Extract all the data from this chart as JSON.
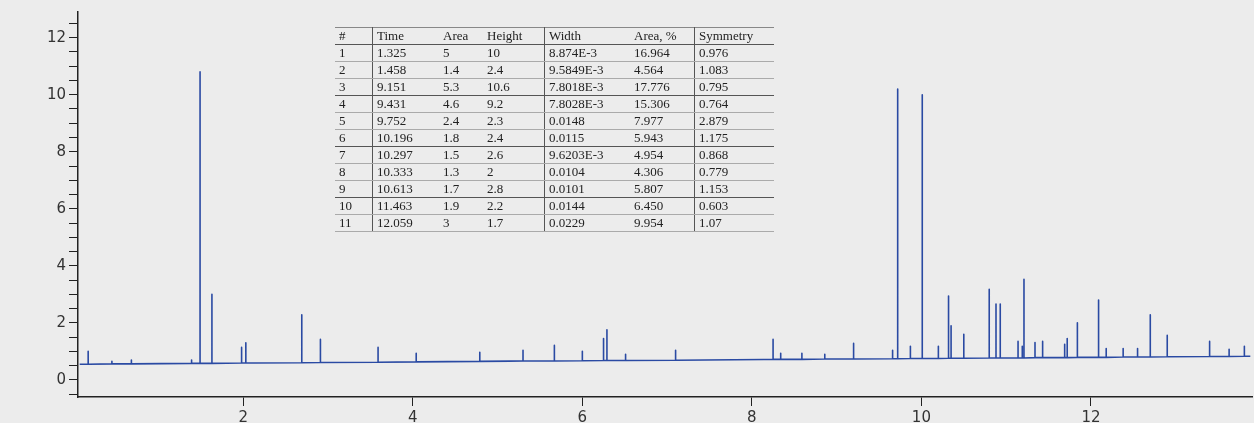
{
  "chart_data": {
    "type": "line",
    "x": [
      0.07,
      0.17,
      0.17,
      0.17,
      0.45,
      0.45,
      0.45,
      0.68,
      0.68,
      0.68,
      1.39,
      1.39,
      1.39,
      1.49,
      1.49,
      1.49,
      1.63,
      1.63,
      1.63,
      1.98,
      1.98,
      1.98,
      2.03,
      2.03,
      2.03,
      2.69,
      2.69,
      2.69,
      2.91,
      2.91,
      2.91,
      3.59,
      3.59,
      3.59,
      4.04,
      4.04,
      4.04,
      4.79,
      4.79,
      4.79,
      5.3,
      5.3,
      5.3,
      5.67,
      5.67,
      5.67,
      6,
      6,
      6,
      6.25,
      6.25,
      6.25,
      6.29,
      6.29,
      6.29,
      6.51,
      6.51,
      6.51,
      7.1,
      7.1,
      7.1,
      8.25,
      8.25,
      8.25,
      8.34,
      8.34,
      8.34,
      8.59,
      8.59,
      8.59,
      8.86,
      8.86,
      8.86,
      9.2,
      9.2,
      9.2,
      9.66,
      9.66,
      9.66,
      9.72,
      9.72,
      9.72,
      9.87,
      9.87,
      9.87,
      10.01,
      10.01,
      10.01,
      10.2,
      10.2,
      10.2,
      10.32,
      10.32,
      10.32,
      10.35,
      10.35,
      10.35,
      10.5,
      10.5,
      10.5,
      10.8,
      10.8,
      10.8,
      10.88,
      10.88,
      10.88,
      10.93,
      10.93,
      10.93,
      11.14,
      11.14,
      11.14,
      11.19,
      11.19,
      11.19,
      11.21,
      11.21,
      11.21,
      11.34,
      11.34,
      11.34,
      11.43,
      11.43,
      11.43,
      11.69,
      11.69,
      11.69,
      11.72,
      11.72,
      11.72,
      11.84,
      11.84,
      11.84,
      12.09,
      12.09,
      12.09,
      12.18,
      12.18,
      12.18,
      12.38,
      12.38,
      12.38,
      12.55,
      12.55,
      12.55,
      12.7,
      12.7,
      12.7,
      12.9,
      12.9,
      12.9,
      13.4,
      13.4,
      13.4,
      13.63,
      13.63,
      13.63,
      13.81,
      13.81,
      13.81,
      13.88
    ],
    "series": [
      {
        "color": "#2a4aa3",
        "values": [
          0.55,
          0.55,
          1.0,
          0.55,
          0.56,
          0.65,
          0.56,
          0.56,
          0.7,
          0.56,
          0.58,
          0.7,
          0.58,
          0.58,
          10.8,
          0.58,
          0.58,
          3.0,
          0.58,
          0.59,
          1.14,
          0.59,
          0.59,
          1.3,
          0.59,
          0.6,
          2.28,
          0.6,
          0.61,
          1.42,
          0.61,
          0.62,
          1.14,
          0.62,
          0.63,
          0.93,
          0.63,
          0.65,
          0.97,
          0.65,
          0.66,
          1.04,
          0.66,
          0.66,
          1.21,
          0.66,
          0.67,
          1.0,
          0.67,
          0.68,
          1.45,
          0.68,
          0.68,
          1.76,
          0.68,
          0.68,
          0.9,
          0.68,
          0.69,
          1.04,
          0.69,
          0.72,
          1.42,
          0.72,
          0.72,
          0.93,
          0.72,
          0.72,
          0.93,
          0.72,
          0.73,
          0.9,
          0.73,
          0.73,
          1.28,
          0.73,
          0.74,
          1.04,
          0.74,
          0.74,
          10.2,
          0.74,
          0.75,
          1.18,
          0.75,
          0.75,
          10.0,
          0.75,
          0.75,
          1.18,
          0.75,
          0.76,
          2.94,
          0.76,
          0.76,
          1.9,
          0.76,
          0.76,
          1.6,
          0.76,
          0.77,
          3.18,
          0.77,
          0.77,
          2.66,
          0.77,
          0.77,
          2.66,
          0.77,
          0.77,
          1.35,
          0.77,
          0.77,
          1.18,
          0.77,
          0.77,
          3.53,
          0.77,
          0.78,
          1.31,
          0.78,
          0.78,
          1.35,
          0.78,
          0.78,
          1.25,
          0.78,
          0.78,
          1.45,
          0.78,
          0.79,
          2.0,
          0.79,
          0.79,
          2.8,
          0.79,
          0.79,
          1.1,
          0.79,
          0.8,
          1.1,
          0.8,
          0.8,
          1.1,
          0.8,
          0.8,
          2.28,
          0.8,
          0.81,
          1.56,
          0.81,
          0.82,
          1.35,
          0.82,
          0.82,
          1.07,
          0.82,
          0.83,
          1.18,
          0.83,
          0.83
        ]
      }
    ],
    "xlim": [
      0.05,
      13.9
    ],
    "xticks": [
      2,
      4,
      6,
      8,
      10,
      12
    ],
    "ylim": [
      -0.6,
      12.9
    ],
    "yticks": [
      {
        "value": -0.5,
        "label": null
      },
      0,
      {
        "value": 0.5,
        "label": null
      },
      {
        "value": 1,
        "label": null
      },
      {
        "value": 1.5,
        "label": null
      },
      2,
      {
        "value": 2.5,
        "label": null
      },
      {
        "value": 3,
        "label": null
      },
      {
        "value": 3.5,
        "label": null
      },
      4,
      {
        "value": 4.5,
        "label": null
      },
      {
        "value": 5,
        "label": null
      },
      {
        "value": 5.5,
        "label": null
      },
      6,
      {
        "value": 6.5,
        "label": null
      },
      {
        "value": 7,
        "label": null
      },
      {
        "value": 7.5,
        "label": null
      },
      8,
      {
        "value": 8.5,
        "label": null
      },
      {
        "value": 9,
        "label": null
      },
      {
        "value": 9.5,
        "label": null
      },
      10,
      {
        "value": 10.5,
        "label": null
      },
      {
        "value": 11,
        "label": null
      },
      {
        "value": 11.5,
        "label": null
      },
      12,
      {
        "value": 12.5,
        "label": null
      }
    ],
    "marker": "none",
    "line_style": "solid",
    "legend": false,
    "annotations": [
      "#",
      "Time",
      "Area",
      "Height",
      "Width",
      "Area, %",
      "Symmetry",
      "1",
      "1.325",
      "5",
      "10",
      "8.874E-3",
      "16.964",
      "0.976",
      "2",
      "1.458",
      "1.4",
      "2.4",
      "9.5849E-3",
      "4.564",
      "1.083",
      "3",
      "9.151",
      "5.3",
      "10.6",
      "7.8018E-3",
      "17.776",
      "0.795",
      "4",
      "9.431",
      "4.6",
      "9.2",
      "7.8028E-3",
      "15.306",
      "0.764",
      "5",
      "9.752",
      "2.4",
      "2.3",
      "0.0148",
      "7.977",
      "2.879",
      "6",
      "10.196",
      "1.8",
      "2.4",
      "0.0115",
      "5.943",
      "1.175",
      "7",
      "10.297",
      "1.5",
      "2.6",
      "9.6203E-3",
      "4.954",
      "0.868",
      "8",
      "10.333",
      "1.3",
      "2",
      "0.0104",
      "4.306",
      "0.779",
      "9",
      "10.613",
      "1.7",
      "2.8",
      "0.0101",
      "5.807",
      "1.153",
      "10",
      "11.463",
      "1.9",
      "2.2",
      "0.0144",
      "6.450",
      "0.603",
      "11",
      "12.059",
      "3",
      "1.7",
      "0.0229",
      "9.954",
      "1.07"
    ]
  }
}
